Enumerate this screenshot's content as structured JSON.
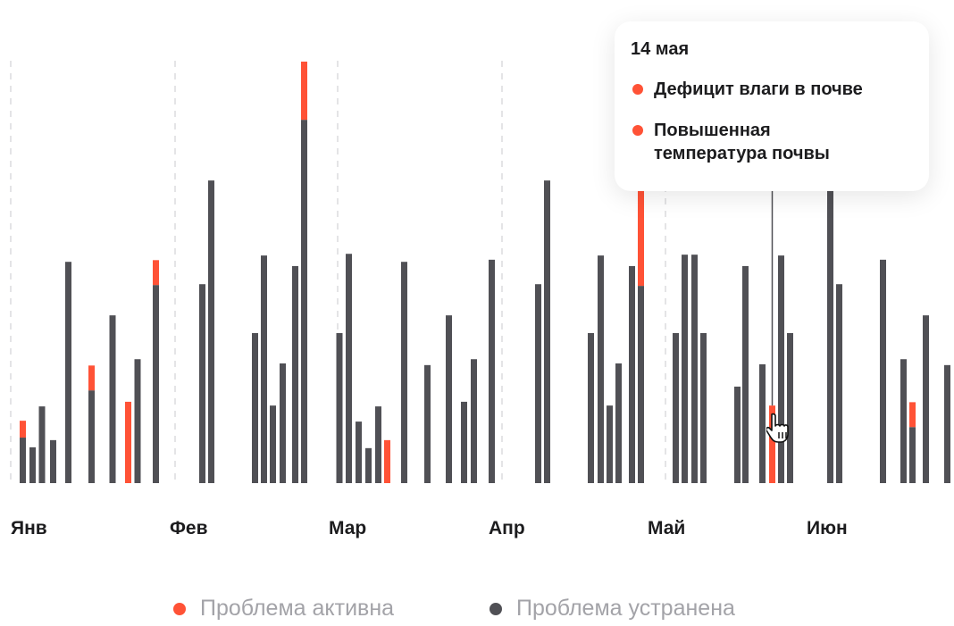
{
  "chart_data": {
    "type": "bar",
    "stacked": true,
    "months": [
      "Янв",
      "Фев",
      "Мар",
      "Апр",
      "Май",
      "Июн"
    ],
    "ylim": [
      0,
      100
    ],
    "grid": "dashed vertical month separators",
    "legend_placement": "bottom",
    "colors": {
      "active": "#ff5236",
      "resolved": "#505055"
    },
    "series": [
      {
        "name": "Проблема активна",
        "key": "active"
      },
      {
        "name": "Проблема устранена",
        "key": "resolved"
      }
    ],
    "bars": [
      {
        "t": 2.7,
        "resolved": 10.8,
        "active": 4.0
      },
      {
        "t": 4.9,
        "resolved": 8.5,
        "active": 0
      },
      {
        "t": 7.0,
        "resolved": 18.2,
        "active": 0
      },
      {
        "t": 9.5,
        "resolved": 10.2,
        "active": 0
      },
      {
        "t": 12.9,
        "resolved": 52.5,
        "active": 0
      },
      {
        "t": 18.1,
        "resolved": 22.0,
        "active": 5.9
      },
      {
        "t": 22.8,
        "resolved": 39.8,
        "active": 0
      },
      {
        "t": 26.3,
        "resolved": 0,
        "active": 19.3
      },
      {
        "t": 28.4,
        "resolved": 29.4,
        "active": 0
      },
      {
        "t": 32.5,
        "resolved": 47.0,
        "active": 5.9
      },
      {
        "t": 42.9,
        "resolved": 47.2,
        "active": 0
      },
      {
        "t": 44.9,
        "resolved": 71.8,
        "active": 0
      },
      {
        "t": 54.7,
        "resolved": 35.6,
        "active": 0
      },
      {
        "t": 56.7,
        "resolved": 54.0,
        "active": 0
      },
      {
        "t": 58.7,
        "resolved": 18.4,
        "active": 0
      },
      {
        "t": 60.9,
        "resolved": 28.4,
        "active": 0
      },
      {
        "t": 63.7,
        "resolved": 51.5,
        "active": 0
      },
      {
        "t": 65.7,
        "resolved": 86.2,
        "active": 13.8
      },
      {
        "t": 73.6,
        "resolved": 35.6,
        "active": 0
      },
      {
        "t": 75.7,
        "resolved": 54.4,
        "active": 0
      },
      {
        "t": 77.9,
        "resolved": 14.6,
        "active": 0
      },
      {
        "t": 80.1,
        "resolved": 8.3,
        "active": 0
      },
      {
        "t": 82.3,
        "resolved": 18.2,
        "active": 0
      },
      {
        "t": 84.3,
        "resolved": 0,
        "active": 10.2
      },
      {
        "t": 88.1,
        "resolved": 52.5,
        "active": 0
      },
      {
        "t": 93.3,
        "resolved": 28.0,
        "active": 0
      },
      {
        "t": 98.1,
        "resolved": 39.8,
        "active": 0
      },
      {
        "t": 101.5,
        "resolved": 19.3,
        "active": 0
      },
      {
        "t": 103.7,
        "resolved": 29.4,
        "active": 0
      },
      {
        "t": 107.7,
        "resolved": 53.0,
        "active": 0
      },
      {
        "t": 118.1,
        "resolved": 47.2,
        "active": 0
      },
      {
        "t": 120.1,
        "resolved": 71.8,
        "active": 0
      },
      {
        "t": 129.9,
        "resolved": 35.6,
        "active": 0
      },
      {
        "t": 132.1,
        "resolved": 54.0,
        "active": 0
      },
      {
        "t": 134.1,
        "resolved": 18.4,
        "active": 0
      },
      {
        "t": 136.1,
        "resolved": 28.4,
        "active": 0
      },
      {
        "t": 139.1,
        "resolved": 51.5,
        "active": 0
      },
      {
        "t": 141.1,
        "resolved": 46.8,
        "active": 53.2
      },
      {
        "t": 148.9,
        "resolved": 35.6,
        "active": 0
      },
      {
        "t": 150.9,
        "resolved": 54.2,
        "active": 0
      },
      {
        "t": 153.1,
        "resolved": 54.2,
        "active": 0
      },
      {
        "t": 155.1,
        "resolved": 35.6,
        "active": 0
      },
      {
        "t": 162.7,
        "resolved": 22.9,
        "active": 0
      },
      {
        "t": 164.5,
        "resolved": 51.5,
        "active": 0
      },
      {
        "t": 168.3,
        "resolved": 28.2,
        "active": 0
      },
      {
        "t": 170.5,
        "resolved": 0,
        "active": 18.4,
        "hovered": true
      },
      {
        "t": 172.5,
        "resolved": 54.0,
        "active": 0
      },
      {
        "t": 174.5,
        "resolved": 35.6,
        "active": 0
      },
      {
        "t": 183.5,
        "resolved": 71.8,
        "active": 0
      },
      {
        "t": 185.5,
        "resolved": 47.2,
        "active": 0
      },
      {
        "t": 195.3,
        "resolved": 53.0,
        "active": 0
      },
      {
        "t": 199.9,
        "resolved": 29.4,
        "active": 0
      },
      {
        "t": 201.9,
        "resolved": 13.3,
        "active": 5.9
      },
      {
        "t": 204.9,
        "resolved": 39.8,
        "active": 0
      },
      {
        "t": 209.7,
        "resolved": 28.0,
        "active": 0
      }
    ]
  },
  "tooltip": {
    "date": "14 мая",
    "items": [
      "Дефицит влаги в почве",
      "Повышенная температура почвы"
    ]
  },
  "legend": {
    "active": "Проблема активна",
    "resolved": "Проблема устранена"
  },
  "cursor_icon": "hand-pointer-icon"
}
